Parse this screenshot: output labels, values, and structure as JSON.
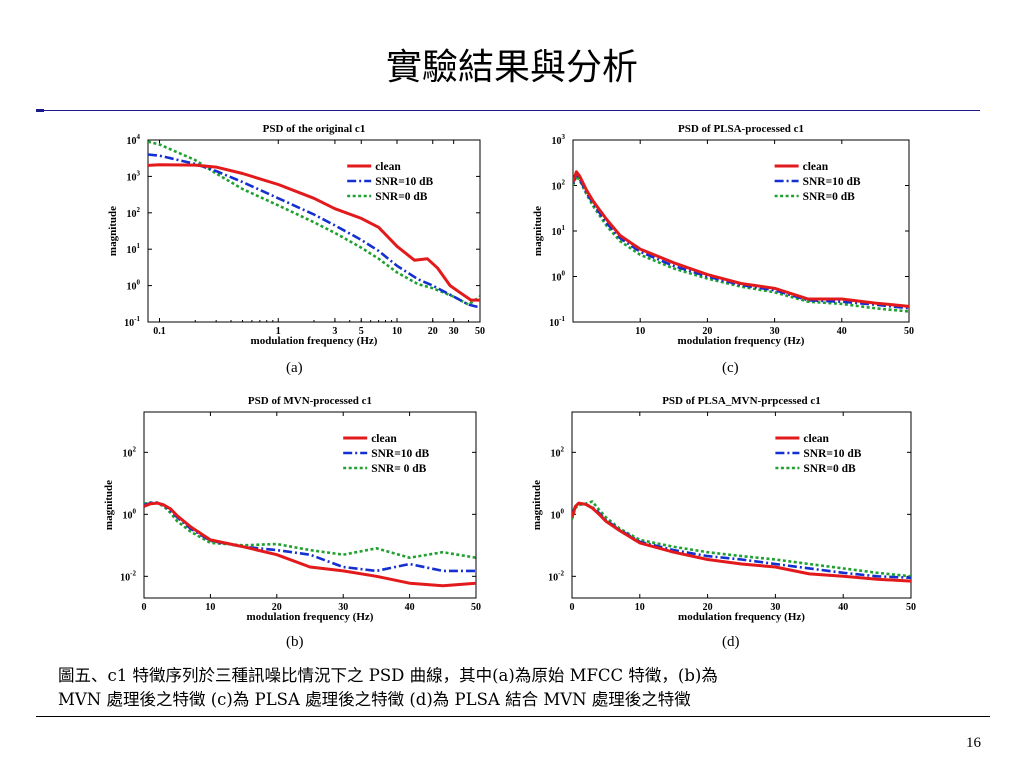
{
  "slide": {
    "title": "實驗結果與分析",
    "caption_line1": "圖五、c1 特徵序列於三種訊噪比情況下之 PSD 曲線，其中(a)為原始 MFCC 特徵，(b)為",
    "caption_line2": "MVN 處理後之特徵 (c)為 PLSA 處理後之特徵 (d)為 PLSA 結合 MVN 處理後之特徵",
    "page_number": "16"
  },
  "colors": {
    "clean": "#e31a1c",
    "snr10": "#1530d0",
    "snr0": "#20a030"
  },
  "chart_data": [
    {
      "id": "a",
      "panel_label": "(a)",
      "type": "line",
      "title": "PSD of the original c1",
      "xlabel": "modulation frequency (Hz)",
      "ylabel": "magnitude",
      "xscale": "log",
      "yscale": "log",
      "xlim": [
        0.08,
        50
      ],
      "ylim": [
        0.1,
        10000
      ],
      "xticks": [
        {
          "v": 0.1,
          "label": "0.1"
        },
        {
          "v": 1,
          "label": "1"
        },
        {
          "v": 3,
          "label": "3"
        },
        {
          "v": 5,
          "label": "5"
        },
        {
          "v": 10,
          "label": "10"
        },
        {
          "v": 20,
          "label": "20"
        },
        {
          "v": 30,
          "label": "30"
        },
        {
          "v": 50,
          "label": "50"
        }
      ],
      "yticks": [
        {
          "v": 0.1,
          "exp": "-1"
        },
        {
          "v": 1,
          "exp": "0"
        },
        {
          "v": 10,
          "exp": "1"
        },
        {
          "v": 100,
          "exp": "2"
        },
        {
          "v": 1000,
          "exp": "3"
        },
        {
          "v": 10000,
          "exp": "4"
        }
      ],
      "legend": {
        "placement": "top-right",
        "entries": [
          "clean",
          "SNR=10 dB",
          "SNR=0 dB"
        ]
      },
      "series": [
        {
          "name": "clean",
          "style": "solid",
          "x": [
            0.08,
            0.1,
            0.2,
            0.3,
            0.5,
            1,
            2,
            3,
            5,
            7,
            10,
            14,
            18,
            22,
            28,
            35,
            42,
            50
          ],
          "y": [
            2000,
            2100,
            2050,
            1800,
            1200,
            600,
            250,
            130,
            70,
            40,
            12,
            5,
            5.5,
            3,
            1,
            0.6,
            0.4,
            0.4
          ]
        },
        {
          "name": "SNR=10 dB",
          "style": "dashdot",
          "x": [
            0.08,
            0.1,
            0.2,
            0.3,
            0.5,
            1,
            2,
            3,
            5,
            7,
            10,
            15,
            20,
            30,
            40,
            50
          ],
          "y": [
            4000,
            3700,
            2200,
            1400,
            700,
            250,
            90,
            45,
            18,
            9,
            3.5,
            1.5,
            1,
            0.5,
            0.3,
            0.25
          ]
        },
        {
          "name": "SNR=0 dB",
          "style": "dotted",
          "x": [
            0.08,
            0.1,
            0.2,
            0.3,
            0.5,
            1,
            2,
            3,
            5,
            7,
            10,
            15,
            20,
            30,
            40,
            50
          ],
          "y": [
            9000,
            7500,
            2800,
            1200,
            450,
            160,
            55,
            28,
            11,
            5.5,
            2.3,
            1.1,
            0.85,
            0.5,
            0.3,
            0.5
          ]
        }
      ]
    },
    {
      "id": "c",
      "panel_label": "(c)",
      "type": "line",
      "title": "PSD of PLSA-processed c1",
      "xlabel": "modulation frequency (Hz)",
      "ylabel": "magnitude",
      "xscale": "linear",
      "yscale": "log",
      "xlim": [
        0,
        50
      ],
      "ylim": [
        0.1,
        1000
      ],
      "xticks": [
        {
          "v": 10,
          "label": "10"
        },
        {
          "v": 20,
          "label": "20"
        },
        {
          "v": 30,
          "label": "30"
        },
        {
          "v": 40,
          "label": "40"
        },
        {
          "v": 50,
          "label": "50"
        }
      ],
      "yticks": [
        {
          "v": 0.1,
          "exp": "-1"
        },
        {
          "v": 1,
          "exp": "0"
        },
        {
          "v": 10,
          "exp": "1"
        },
        {
          "v": 100,
          "exp": "2"
        },
        {
          "v": 1000,
          "exp": "3"
        }
      ],
      "legend": {
        "placement": "top-right",
        "entries": [
          "clean",
          "SNR=10 dB",
          "SNR=0 dB"
        ]
      },
      "series": [
        {
          "name": "clean",
          "style": "solid",
          "x": [
            0,
            0.5,
            1,
            2,
            3,
            5,
            7,
            10,
            15,
            20,
            25,
            30,
            35,
            40,
            45,
            50
          ],
          "y": [
            120,
            200,
            160,
            80,
            45,
            18,
            8,
            4,
            2,
            1.1,
            0.7,
            0.55,
            0.32,
            0.32,
            0.26,
            0.22
          ]
        },
        {
          "name": "SNR=10 dB",
          "style": "dashdot",
          "x": [
            0,
            0.5,
            1,
            2,
            3,
            5,
            7,
            10,
            15,
            20,
            25,
            30,
            35,
            40,
            45,
            50
          ],
          "y": [
            110,
            180,
            140,
            70,
            40,
            15,
            7,
            3.5,
            1.7,
            1,
            0.65,
            0.5,
            0.3,
            0.28,
            0.24,
            0.2
          ]
        },
        {
          "name": "SNR=0 dB",
          "style": "dotted",
          "x": [
            0,
            0.5,
            1,
            2,
            3,
            5,
            7,
            10,
            15,
            20,
            25,
            30,
            35,
            40,
            45,
            50
          ],
          "y": [
            100,
            160,
            130,
            65,
            35,
            13,
            6,
            3,
            1.5,
            0.9,
            0.6,
            0.45,
            0.28,
            0.25,
            0.2,
            0.17
          ]
        }
      ]
    },
    {
      "id": "b",
      "panel_label": "(b)",
      "type": "line",
      "title": "PSD of MVN-processed c1",
      "xlabel": "modulation frequency (Hz)",
      "ylabel": "magnitude",
      "xscale": "linear",
      "yscale": "log",
      "xlim": [
        0,
        50
      ],
      "ylim": [
        0.002,
        2000
      ],
      "xticks": [
        {
          "v": 0,
          "label": "0"
        },
        {
          "v": 10,
          "label": "10"
        },
        {
          "v": 20,
          "label": "20"
        },
        {
          "v": 30,
          "label": "30"
        },
        {
          "v": 40,
          "label": "40"
        },
        {
          "v": 50,
          "label": "50"
        }
      ],
      "yticks": [
        {
          "v": 0.01,
          "exp": "-2"
        },
        {
          "v": 1,
          "exp": "0"
        },
        {
          "v": 100,
          "exp": "2"
        }
      ],
      "legend": {
        "placement": "top-right",
        "entries": [
          "clean",
          "SNR=10 dB",
          "SNR= 0 dB"
        ]
      },
      "series": [
        {
          "name": "clean",
          "style": "solid",
          "x": [
            0,
            1,
            2,
            3,
            4,
            5,
            7,
            10,
            15,
            20,
            25,
            30,
            35,
            40,
            45,
            50
          ],
          "y": [
            1.8,
            2.2,
            2.3,
            2,
            1.5,
            0.9,
            0.4,
            0.15,
            0.09,
            0.05,
            0.02,
            0.015,
            0.01,
            0.006,
            0.005,
            0.006
          ]
        },
        {
          "name": "SNR=10 dB",
          "style": "dashdot",
          "x": [
            0,
            1,
            2,
            3,
            4,
            5,
            7,
            10,
            15,
            20,
            25,
            30,
            35,
            40,
            45,
            50
          ],
          "y": [
            2,
            2.3,
            2.4,
            2,
            1.3,
            0.8,
            0.35,
            0.14,
            0.09,
            0.07,
            0.05,
            0.02,
            0.015,
            0.025,
            0.015,
            0.015
          ]
        },
        {
          "name": "SNR= 0 dB",
          "style": "dotted",
          "x": [
            0,
            1,
            2,
            3,
            4,
            5,
            7,
            10,
            15,
            20,
            25,
            30,
            35,
            40,
            45,
            50
          ],
          "y": [
            2.2,
            2.4,
            2.3,
            1.8,
            1.1,
            0.6,
            0.28,
            0.12,
            0.1,
            0.11,
            0.07,
            0.05,
            0.08,
            0.04,
            0.06,
            0.04
          ]
        }
      ]
    },
    {
      "id": "d",
      "panel_label": "(d)",
      "type": "line",
      "title": "PSD of PLSA_MVN-prpcessed c1",
      "xlabel": "modulation frequency (Hz)",
      "ylabel": "magnitude",
      "xscale": "linear",
      "yscale": "log",
      "xlim": [
        0,
        50
      ],
      "ylim": [
        0.002,
        2000
      ],
      "xticks": [
        {
          "v": 0,
          "label": "0"
        },
        {
          "v": 10,
          "label": "10"
        },
        {
          "v": 20,
          "label": "20"
        },
        {
          "v": 30,
          "label": "30"
        },
        {
          "v": 40,
          "label": "40"
        },
        {
          "v": 50,
          "label": "50"
        }
      ],
      "yticks": [
        {
          "v": 0.01,
          "exp": "-2"
        },
        {
          "v": 1,
          "exp": "0"
        },
        {
          "v": 100,
          "exp": "2"
        }
      ],
      "legend": {
        "placement": "top-right",
        "entries": [
          "clean",
          "SNR=10 dB",
          "SNR=0 dB"
        ]
      },
      "series": [
        {
          "name": "clean",
          "style": "solid",
          "x": [
            0,
            0.5,
            1,
            2,
            3,
            4,
            5,
            7,
            10,
            15,
            20,
            25,
            30,
            35,
            40,
            45,
            50
          ],
          "y": [
            0.8,
            1.8,
            2.3,
            2.1,
            1.6,
            1,
            0.6,
            0.3,
            0.12,
            0.06,
            0.035,
            0.025,
            0.02,
            0.012,
            0.01,
            0.008,
            0.007
          ]
        },
        {
          "name": "SNR=10 dB",
          "style": "dashdot",
          "x": [
            0,
            0.5,
            1,
            2,
            3,
            4,
            5,
            7,
            10,
            15,
            20,
            25,
            30,
            35,
            40,
            45,
            50
          ],
          "y": [
            0.9,
            1.9,
            2.2,
            2.1,
            1.7,
            1.1,
            0.65,
            0.32,
            0.13,
            0.07,
            0.045,
            0.035,
            0.025,
            0.018,
            0.013,
            0.01,
            0.009
          ]
        },
        {
          "name": "SNR=0 dB",
          "style": "dotted",
          "x": [
            0,
            0.5,
            1,
            2,
            3,
            4,
            5,
            7,
            10,
            15,
            20,
            25,
            30,
            35,
            40,
            45,
            50
          ],
          "y": [
            0.7,
            1.6,
            2.0,
            2.2,
            2.6,
            1.4,
            0.8,
            0.35,
            0.15,
            0.09,
            0.06,
            0.045,
            0.035,
            0.025,
            0.018,
            0.013,
            0.01
          ]
        }
      ]
    }
  ]
}
